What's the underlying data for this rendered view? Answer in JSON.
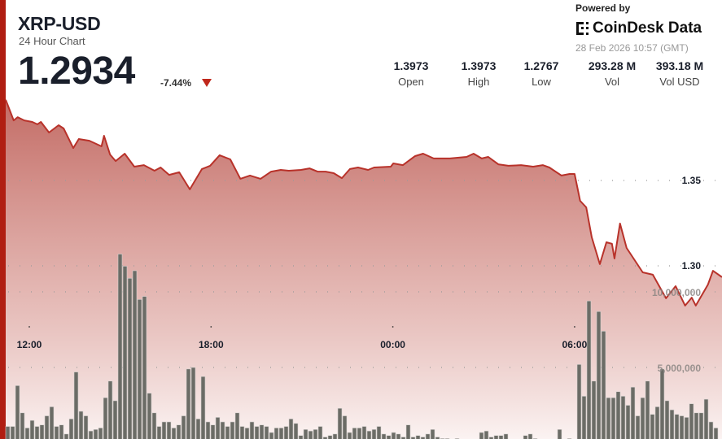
{
  "header": {
    "symbol": "XRP-USD",
    "subtitle": "24 Hour Chart",
    "price": "1.2934",
    "change": "-7.44%",
    "change_direction": "down",
    "down_color": "#c0281c"
  },
  "branding": {
    "powered_by": "Powered by",
    "logo_text": "CoinDesk Data",
    "timestamp": "28 Feb 2026 10:57 (GMT)"
  },
  "stats": [
    {
      "value": "1.3973",
      "label": "Open"
    },
    {
      "value": "1.3973",
      "label": "High"
    },
    {
      "value": "1.2767",
      "label": "Low"
    },
    {
      "value": "293.28 M",
      "label": "Vol"
    },
    {
      "value": "393.18 M",
      "label": "Vol USD"
    }
  ],
  "chart_data": {
    "type": "area",
    "grid": true,
    "colors": {
      "line": "#b8322a",
      "accent": "#b01e12",
      "volume": "#6b6c66"
    },
    "x_tick_labels": [
      "12:00",
      "18:00",
      "00:00",
      "06:00"
    ],
    "price_tick_labels": [
      "1.35",
      "1.30"
    ],
    "volume_tick_labels": [
      "10,000,000",
      "5,000,000"
    ],
    "price_series": {
      "time": [
        "11:15",
        "11:29",
        "11:37",
        "11:50",
        "12:06",
        "12:16",
        "12:23",
        "12:39",
        "12:58",
        "13:08",
        "13:27",
        "13:38",
        "13:59",
        "14:23",
        "14:28",
        "14:40",
        "14:51",
        "15:09",
        "15:28",
        "15:47",
        "16:08",
        "16:20",
        "16:37",
        "16:57",
        "17:18",
        "17:42",
        "17:58",
        "18:17",
        "18:38",
        "18:58",
        "19:17",
        "19:38",
        "19:59",
        "20:18",
        "20:34",
        "20:58",
        "21:15",
        "21:31",
        "21:47",
        "22:03",
        "22:19",
        "22:35",
        "22:51",
        "23:11",
        "23:23",
        "23:56",
        "00:01",
        "00:20",
        "00:44",
        "01:00",
        "01:21",
        "01:53",
        "02:26",
        "02:40",
        "02:56",
        "03:09",
        "03:29",
        "03:49",
        "04:14",
        "04:38",
        "04:57",
        "05:10",
        "05:34",
        "05:50",
        "06:00",
        "06:11",
        "06:23",
        "06:34",
        "06:50",
        "07:03",
        "07:14",
        "07:19",
        "07:30",
        "07:43",
        "08:15",
        "08:35",
        "09:01",
        "09:20",
        "09:39",
        "09:52",
        "10:00",
        "10:24",
        "10:34",
        "10:57"
      ],
      "values": [
        1.3973,
        1.3852,
        1.3871,
        1.3852,
        1.3843,
        1.3829,
        1.3843,
        1.3781,
        1.3824,
        1.3805,
        1.369,
        1.3743,
        1.3733,
        1.37,
        1.3762,
        1.3652,
        1.3614,
        1.3657,
        1.3581,
        1.359,
        1.3557,
        1.3576,
        1.3533,
        1.3548,
        1.3448,
        1.3567,
        1.3586,
        1.3648,
        1.3624,
        1.351,
        1.3529,
        1.351,
        1.3552,
        1.3562,
        1.3557,
        1.3562,
        1.3571,
        1.3552,
        1.3552,
        1.3543,
        1.3514,
        1.3567,
        1.3576,
        1.3562,
        1.3576,
        1.3581,
        1.36,
        1.359,
        1.3643,
        1.3657,
        1.3629,
        1.3629,
        1.3638,
        1.3657,
        1.3629,
        1.3638,
        1.3595,
        1.3586,
        1.359,
        1.3581,
        1.359,
        1.3576,
        1.3529,
        1.3538,
        1.3538,
        1.3381,
        1.3343,
        1.3167,
        1.301,
        1.3138,
        1.3129,
        1.3043,
        1.3248,
        1.3105,
        1.2962,
        1.2948,
        1.281,
        1.2881,
        1.2767,
        1.2814,
        1.2767,
        1.289,
        1.2971,
        1.2934
      ]
    },
    "volume_series": {
      "values": [
        1100000.0,
        1100000.0,
        3800000.0,
        2000000.0,
        1000000.0,
        1500000.0,
        1100000.0,
        1200000.0,
        1800000.0,
        2400000.0,
        1100000.0,
        1200000.0,
        600000.0,
        1600000.0,
        4700000.0,
        2100000.0,
        1800000.0,
        800000.0,
        900000.0,
        1000000.0,
        3000000.0,
        4100000.0,
        2800000.0,
        12500000.0,
        11700000.0,
        10900000.0,
        11400000.0,
        9500000.0,
        9700000.0,
        3300000.0,
        2000000.0,
        1100000.0,
        1400000.0,
        1400000.0,
        1000000.0,
        1200000.0,
        1800000.0,
        4900000.0,
        5000000.0,
        1600000.0,
        4400000.0,
        1400000.0,
        1200000.0,
        1700000.0,
        1400000.0,
        1100000.0,
        1400000.0,
        2000000.0,
        1100000.0,
        1000000.0,
        1400000.0,
        1100000.0,
        1200000.0,
        1100000.0,
        700000.0,
        1000000.0,
        1000000.0,
        1100000.0,
        1600000.0,
        1300000.0,
        500000.0,
        900000.0,
        800000.0,
        900000.0,
        1100000.0,
        400000.0,
        500000.0,
        600000.0,
        2300000.0,
        1800000.0,
        700000.0,
        1000000.0,
        1000000.0,
        1100000.0,
        800000.0,
        900000.0,
        1100000.0,
        600000.0,
        500000.0,
        700000.0,
        600000.0,
        400000.0,
        1200000.0,
        400000.0,
        500000.0,
        400000.0,
        600000.0,
        900000.0,
        400000.0,
        300000.0,
        300000.0,
        100000.0,
        300000.0,
        100000.0,
        100000.0,
        100000.0,
        200000.0,
        700000.0,
        800000.0,
        400000.0,
        500000.0,
        500000.0,
        600000.0,
        100000.0,
        100000.0,
        200000.0,
        500000.0,
        600000.0,
        300000.0,
        100000.0,
        100000.0,
        100000.0,
        100000.0,
        900000.0,
        200000.0,
        300000.0,
        200000.0,
        5200000.0,
        3100000.0,
        9400000.0,
        4100000.0,
        8700000.0,
        7400000.0,
        3000000.0,
        3000000.0,
        3400000.0,
        3100000.0,
        2500000.0,
        3700000.0,
        1800000.0,
        3000000.0,
        4100000.0,
        1900000.0,
        2400000.0,
        4900000.0,
        2800000.0,
        2200000.0,
        1900000.0,
        1800000.0,
        1700000.0,
        2600000.0,
        2000000.0,
        2000000.0,
        2900000.0,
        1400000.0,
        1000000.0
      ]
    }
  }
}
